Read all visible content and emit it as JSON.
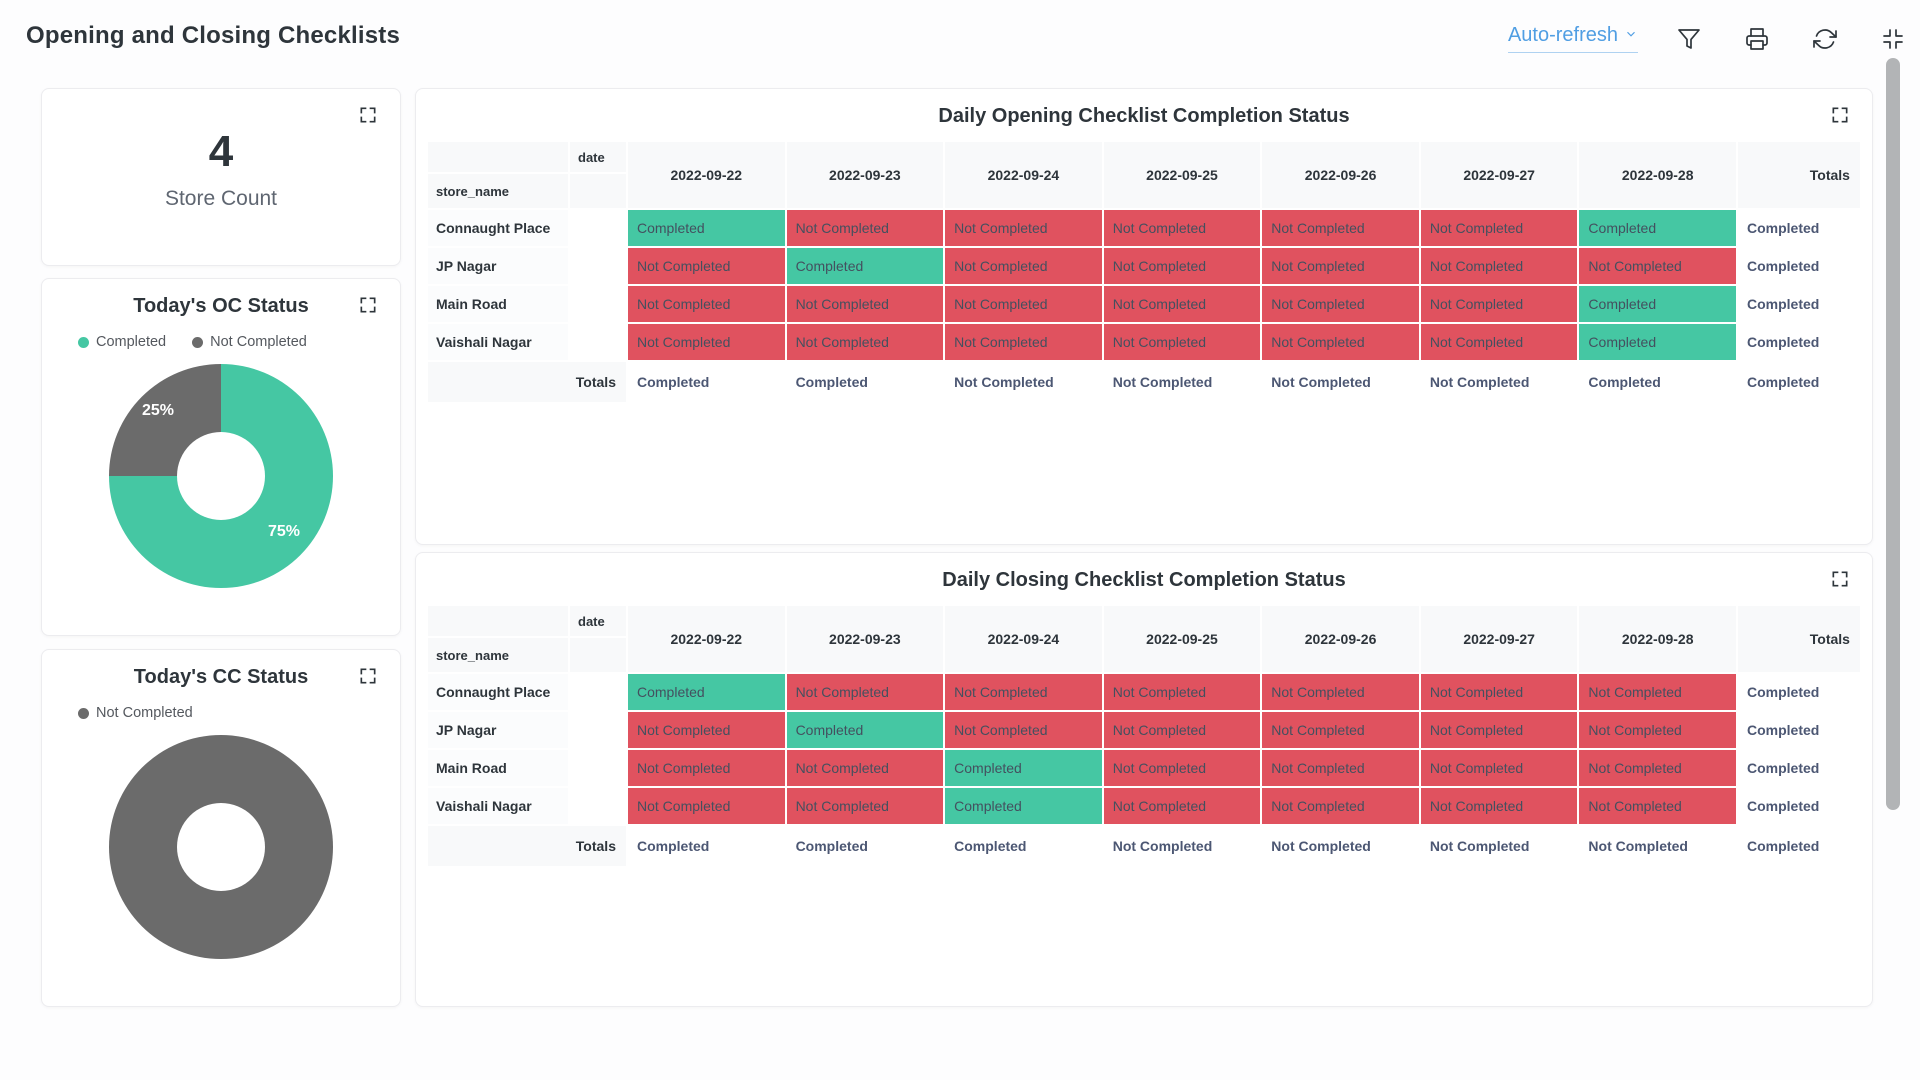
{
  "colors": {
    "completed": "#45c7a3",
    "not_completed": "#e0525f",
    "neutral_gray": "#6b6b6b",
    "accent_blue": "#509ee3"
  },
  "header": {
    "title": "Opening and Closing Checklists",
    "auto_refresh": "Auto-refresh"
  },
  "store_count_card": {
    "value": "4",
    "label": "Store Count"
  },
  "oc_card": {
    "title": "Today's OC Status",
    "legend": [
      {
        "label": "Completed",
        "color": "#45c7a3"
      },
      {
        "label": "Not Completed",
        "color": "#6b6b6b"
      }
    ],
    "chart": {
      "type": "pie",
      "slices": [
        {
          "label": "Completed",
          "pct": 75,
          "pct_label": "75%",
          "color": "#45c7a3"
        },
        {
          "label": "Not Completed",
          "pct": 25,
          "pct_label": "25%",
          "color": "#6b6b6b"
        }
      ]
    }
  },
  "cc_card": {
    "title": "Today's CC Status",
    "legend": [
      {
        "label": "Not Completed",
        "color": "#6b6b6b"
      }
    ],
    "chart": {
      "type": "pie",
      "slices": [
        {
          "label": "Not Completed",
          "pct": 100,
          "color": "#6b6b6b"
        }
      ]
    }
  },
  "opening_table": {
    "title": "Daily Opening Checklist Completion Status",
    "corner": {
      "col_field": "date",
      "row_field": "store_name"
    },
    "totals_col_header": "Totals",
    "totals_row_label": "Totals",
    "dates": [
      "2022-09-22",
      "2022-09-23",
      "2022-09-24",
      "2022-09-25",
      "2022-09-26",
      "2022-09-27",
      "2022-09-28"
    ],
    "rows": [
      {
        "store": "Connaught Place",
        "cells": [
          "Completed",
          "Not Completed",
          "Not Completed",
          "Not Completed",
          "Not Completed",
          "Not Completed",
          "Completed"
        ],
        "total": "Completed"
      },
      {
        "store": "JP Nagar",
        "cells": [
          "Not Completed",
          "Completed",
          "Not Completed",
          "Not Completed",
          "Not Completed",
          "Not Completed",
          "Not Completed"
        ],
        "total": "Completed"
      },
      {
        "store": "Main Road",
        "cells": [
          "Not Completed",
          "Not Completed",
          "Not Completed",
          "Not Completed",
          "Not Completed",
          "Not Completed",
          "Completed"
        ],
        "total": "Completed"
      },
      {
        "store": "Vaishali Nagar",
        "cells": [
          "Not Completed",
          "Not Completed",
          "Not Completed",
          "Not Completed",
          "Not Completed",
          "Not Completed",
          "Completed"
        ],
        "total": "Completed"
      }
    ],
    "totals_row": {
      "cells": [
        "Completed",
        "Completed",
        "Not Completed",
        "Not Completed",
        "Not Completed",
        "Not Completed",
        "Completed"
      ],
      "total": "Completed"
    }
  },
  "closing_table": {
    "title": "Daily Closing Checklist Completion Status",
    "corner": {
      "col_field": "date",
      "row_field": "store_name"
    },
    "totals_col_header": "Totals",
    "totals_row_label": "Totals",
    "dates": [
      "2022-09-22",
      "2022-09-23",
      "2022-09-24",
      "2022-09-25",
      "2022-09-26",
      "2022-09-27",
      "2022-09-28"
    ],
    "rows": [
      {
        "store": "Connaught Place",
        "cells": [
          "Completed",
          "Not Completed",
          "Not Completed",
          "Not Completed",
          "Not Completed",
          "Not Completed",
          "Not Completed"
        ],
        "total": "Completed"
      },
      {
        "store": "JP Nagar",
        "cells": [
          "Not Completed",
          "Completed",
          "Not Completed",
          "Not Completed",
          "Not Completed",
          "Not Completed",
          "Not Completed"
        ],
        "total": "Completed"
      },
      {
        "store": "Main Road",
        "cells": [
          "Not Completed",
          "Not Completed",
          "Completed",
          "Not Completed",
          "Not Completed",
          "Not Completed",
          "Not Completed"
        ],
        "total": "Completed"
      },
      {
        "store": "Vaishali Nagar",
        "cells": [
          "Not Completed",
          "Not Completed",
          "Completed",
          "Not Completed",
          "Not Completed",
          "Not Completed",
          "Not Completed"
        ],
        "total": "Completed"
      }
    ],
    "totals_row": {
      "cells": [
        "Completed",
        "Completed",
        "Completed",
        "Not Completed",
        "Not Completed",
        "Not Completed",
        "Not Completed"
      ],
      "total": "Completed"
    }
  }
}
